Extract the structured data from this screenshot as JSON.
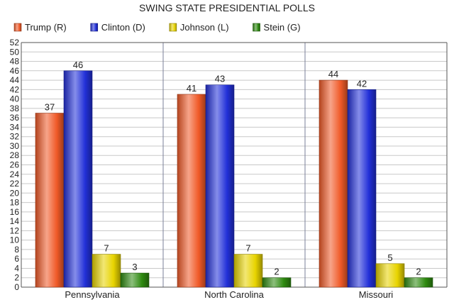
{
  "chart_data": {
    "type": "bar",
    "title": "SWING STATE PRESIDENTIAL POLLS",
    "xlabel": "",
    "ylabel": "",
    "categories": [
      "Pennsylvania",
      "North Carolina",
      "Missouri"
    ],
    "series": [
      {
        "name": "Trump (R)",
        "color": "#f05a28",
        "values": [
          37,
          41,
          44
        ]
      },
      {
        "name": "Clinton (D)",
        "color": "#2230d8",
        "values": [
          46,
          43,
          42
        ]
      },
      {
        "name": "Johnson (L)",
        "color": "#e8d400",
        "values": [
          7,
          7,
          5
        ]
      },
      {
        "name": "Stein (G)",
        "color": "#2e8a10",
        "values": [
          3,
          2,
          2
        ]
      }
    ],
    "ylim": [
      0,
      52
    ],
    "ytick_step": 2,
    "grid": true,
    "legend_position": "top-left"
  }
}
